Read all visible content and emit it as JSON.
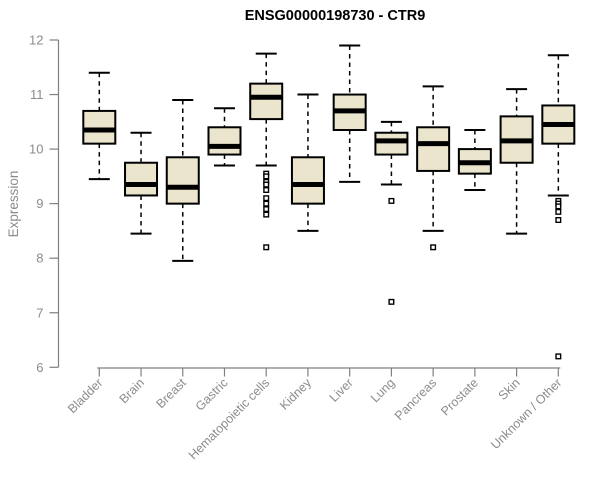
{
  "chart_data": {
    "type": "boxplot",
    "title": "ENSG00000198730 - CTR9",
    "ylabel": "Expression",
    "xlabel": "",
    "ylim": [
      6,
      12
    ],
    "yticks": [
      6,
      7,
      8,
      9,
      10,
      11,
      12
    ],
    "grid": false,
    "legend": false,
    "categories": [
      "Bladder",
      "Brain",
      "Breast",
      "Gastric",
      "Hematopoietic cells",
      "Kidney",
      "Liver",
      "Lung",
      "Pancreas",
      "Prostate",
      "Skin",
      "Unknown / Other"
    ],
    "boxes": [
      {
        "category": "Bladder",
        "whisker_low": 9.45,
        "q1": 10.1,
        "median": 10.35,
        "q3": 10.7,
        "whisker_high": 11.4,
        "outliers": []
      },
      {
        "category": "Brain",
        "whisker_low": 8.45,
        "q1": 9.15,
        "median": 9.35,
        "q3": 9.75,
        "whisker_high": 10.3,
        "outliers": []
      },
      {
        "category": "Breast",
        "whisker_low": 7.95,
        "q1": 9.0,
        "median": 9.3,
        "q3": 9.85,
        "whisker_high": 10.9,
        "outliers": []
      },
      {
        "category": "Gastric",
        "whisker_low": 9.7,
        "q1": 9.9,
        "median": 10.05,
        "q3": 10.4,
        "whisker_high": 10.75,
        "outliers": []
      },
      {
        "category": "Hematopoietic cells",
        "whisker_low": 9.7,
        "q1": 10.55,
        "median": 10.95,
        "q3": 11.2,
        "whisker_high": 11.75,
        "outliers": [
          9.55,
          9.5,
          9.4,
          9.35,
          9.25,
          9.1,
          9.0,
          8.9,
          8.8,
          8.2
        ]
      },
      {
        "category": "Kidney",
        "whisker_low": 8.5,
        "q1": 9.0,
        "median": 9.35,
        "q3": 9.85,
        "whisker_high": 11.0,
        "outliers": []
      },
      {
        "category": "Liver",
        "whisker_low": 9.4,
        "q1": 10.35,
        "median": 10.7,
        "q3": 11.0,
        "whisker_high": 11.9,
        "outliers": []
      },
      {
        "category": "Lung",
        "whisker_low": 9.35,
        "q1": 9.9,
        "median": 10.15,
        "q3": 10.3,
        "whisker_high": 10.5,
        "outliers": [
          9.05,
          7.2
        ]
      },
      {
        "category": "Pancreas",
        "whisker_low": 8.5,
        "q1": 9.6,
        "median": 10.1,
        "q3": 10.4,
        "whisker_high": 11.15,
        "outliers": [
          8.2
        ]
      },
      {
        "category": "Prostate",
        "whisker_low": 9.25,
        "q1": 9.55,
        "median": 9.75,
        "q3": 10.0,
        "whisker_high": 10.35,
        "outliers": []
      },
      {
        "category": "Skin",
        "whisker_low": 8.45,
        "q1": 9.75,
        "median": 10.15,
        "q3": 10.6,
        "whisker_high": 11.1,
        "outliers": []
      },
      {
        "category": "Unknown / Other",
        "whisker_low": 9.15,
        "q1": 10.1,
        "median": 10.45,
        "q3": 10.8,
        "whisker_high": 11.72,
        "outliers": [
          9.05,
          9.0,
          8.95,
          8.85,
          8.7,
          6.2
        ]
      }
    ],
    "colors": {
      "background": "#ffffff",
      "box_fill": "#eae5cc",
      "box_border": "#000000",
      "median": "#000000",
      "whisker": "#000000",
      "outlier": "#000000",
      "axis_line": "#808080",
      "tick_label": "#8c8c8c",
      "axis_title": "#8c8c8c",
      "title": "#000000"
    }
  }
}
